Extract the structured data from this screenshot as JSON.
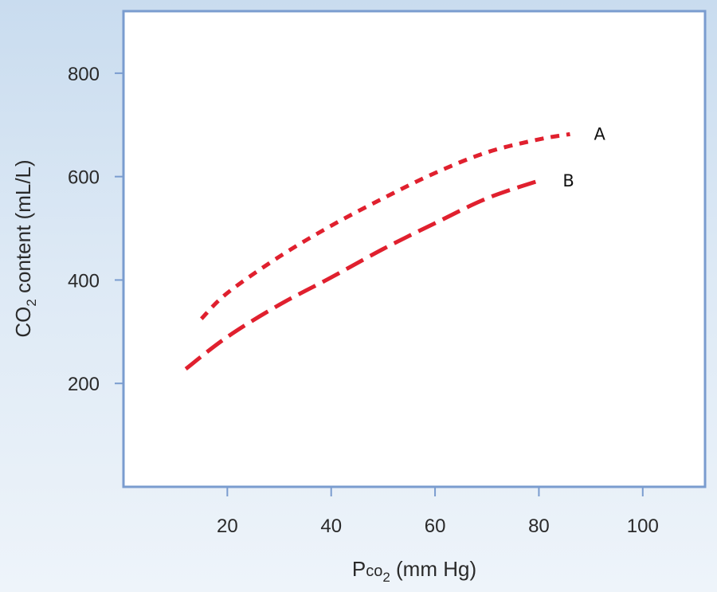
{
  "chart_data": {
    "type": "line",
    "xlabel": {
      "main": "P",
      "small": "co",
      "sub": "2",
      "unit": " (mm Hg)"
    },
    "ylabel": {
      "pre": "CO",
      "sub": "2",
      "post": " content (mL/L)"
    },
    "xlim": [
      0,
      112
    ],
    "ylim": [
      0,
      920
    ],
    "xticks": [
      20,
      40,
      60,
      80,
      100
    ],
    "yticks": [
      200,
      400,
      600,
      800
    ],
    "grid": false,
    "line_color": "#e0202e",
    "frame_color": "#7a9ccf",
    "series": [
      {
        "name": "A",
        "style": "short-dash",
        "x": [
          15,
          20,
          30,
          40,
          50,
          60,
          70,
          80,
          86
        ],
        "y": [
          325,
          375,
          445,
          505,
          558,
          607,
          647,
          672,
          682
        ]
      },
      {
        "name": "B",
        "style": "long-dash",
        "x": [
          12,
          20,
          30,
          40,
          50,
          60,
          70,
          80
        ],
        "y": [
          228,
          290,
          352,
          405,
          460,
          510,
          558,
          592
        ]
      }
    ]
  }
}
